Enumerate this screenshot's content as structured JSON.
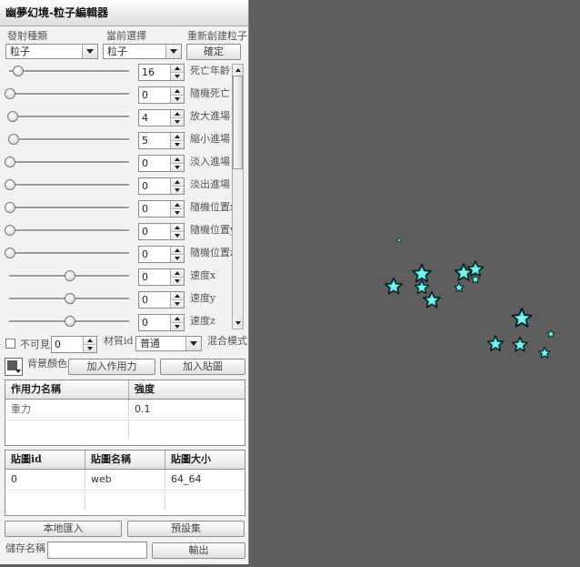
{
  "app": {
    "title": "幽夢幻境-粒子編輯器"
  },
  "top": {
    "emitter_label": "發射種類",
    "current_label": "當前選擇",
    "recreate_label": "重新創建粒子",
    "emitter_value": "粒子",
    "current_value": "粒子",
    "confirm_label": "確定"
  },
  "params": [
    {
      "value": "16",
      "label": "死亡年齡",
      "slider": 0.07
    },
    {
      "value": "0",
      "label": "隨機死亡",
      "slider": 0.0
    },
    {
      "value": "4",
      "label": "放大進場",
      "slider": 0.02
    },
    {
      "value": "5",
      "label": "縮小進場",
      "slider": 0.03
    },
    {
      "value": "0",
      "label": "淡入進場",
      "slider": 0.0
    },
    {
      "value": "0",
      "label": "淡出進場",
      "slider": 0.0
    },
    {
      "value": "0",
      "label": "隨機位置x",
      "slider": 0.0
    },
    {
      "value": "0",
      "label": "隨機位置y",
      "slider": 0.0
    },
    {
      "value": "0",
      "label": "隨機位置z",
      "slider": 0.0
    },
    {
      "value": "0",
      "label": "速度x",
      "slider": 0.5
    },
    {
      "value": "0",
      "label": "速度y",
      "slider": 0.5
    },
    {
      "value": "0",
      "label": "速度z",
      "slider": 0.5
    }
  ],
  "scroll": {
    "position": 0.0
  },
  "options": {
    "invisible_label": "不可見",
    "invisible_value": "0",
    "material_label": "材質id",
    "blend_value": "普通",
    "blend_label": "混合模式",
    "bg_color_label": "背景顏色",
    "bg_color": "#5a5a5a",
    "add_force_label": "加入作用力",
    "add_texture_label": "加入貼圖"
  },
  "force_table": {
    "headers": [
      "作用力名稱",
      "強度"
    ],
    "rows": [
      [
        "重力",
        "0.1"
      ]
    ]
  },
  "texture_table": {
    "headers": [
      "貼圖id",
      "貼圖名稱",
      "貼圖大小"
    ],
    "rows": [
      [
        "0",
        "web",
        "64_64"
      ]
    ]
  },
  "bottom": {
    "local_import_label": "本地匯入",
    "presets_label": "預設集",
    "save_name_label": "儲存名稱",
    "save_name_value": "",
    "export_label": "輸出"
  },
  "viewport": {
    "background": "#5e5e5e",
    "particle_color": "#2fd8d8"
  }
}
